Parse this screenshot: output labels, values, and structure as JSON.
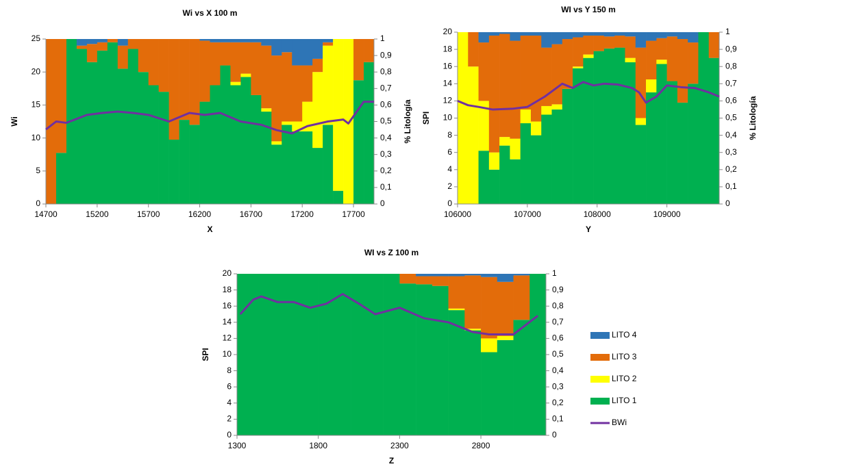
{
  "legend": [
    {
      "name": "LITO 4",
      "color": "#2e75b6"
    },
    {
      "name": "LITO 3",
      "color": "#e36c0a"
    },
    {
      "name": "LITO 2",
      "color": "#ffff00"
    },
    {
      "name": "LITO 1",
      "color": "#00b050"
    },
    {
      "name": "BWi",
      "color": "#7030a0"
    }
  ],
  "chart_data": [
    {
      "type": "stacked-histogram-line",
      "title": "Wi vs X 100 m",
      "x_label": "X",
      "y_label": "Wi",
      "y2_label": "% Litología",
      "bins": [
        14700,
        14800,
        14900,
        15000,
        15100,
        15200,
        15300,
        15400,
        15500,
        15600,
        15700,
        15800,
        15900,
        16000,
        16100,
        16200,
        16300,
        16400,
        16500,
        16600,
        16700,
        16800,
        16900,
        17000,
        17100,
        17200,
        17300,
        17400,
        17500,
        17600,
        17700,
        17800,
        17900
      ],
      "series": [
        {
          "values": [
            0,
            0,
            0,
            0.04,
            0.03,
            0.02,
            0,
            0.04,
            0,
            0,
            0,
            0,
            0,
            0,
            0,
            0.01,
            0.02,
            0.02,
            0.02,
            0.02,
            0.02,
            0.04,
            0.1,
            0.08,
            0.16,
            0.16,
            0.12,
            0.02,
            0,
            0,
            0,
            0
          ],
          "axis": "y2"
        },
        {
          "values": [
            1,
            0.69,
            0,
            0.02,
            0.11,
            0.05,
            0.02,
            0.14,
            0.06,
            0.2,
            0.28,
            0.32,
            0.61,
            0.49,
            0.52,
            0.37,
            0.26,
            0.14,
            0.24,
            0.19,
            0.32,
            0.38,
            0.52,
            0.42,
            0.34,
            0.22,
            0.08,
            0.02,
            0,
            0,
            0.25,
            0.14
          ],
          "axis": "y2"
        },
        {
          "values": [
            0,
            0,
            0,
            0,
            0,
            0,
            0,
            0,
            0,
            0,
            0,
            0,
            0,
            0,
            0,
            0,
            0,
            0,
            0.02,
            0.02,
            0,
            0.02,
            0.02,
            0.02,
            0.06,
            0.18,
            0.46,
            0.48,
            0.92,
            1,
            0,
            0
          ],
          "axis": "y2"
        },
        {
          "values": [
            0,
            0.31,
            1,
            0.94,
            0.86,
            0.93,
            0.98,
            0.82,
            0.94,
            0.8,
            0.72,
            0.68,
            0.39,
            0.51,
            0.48,
            0.62,
            0.72,
            0.84,
            0.72,
            0.77,
            0.66,
            0.56,
            0.36,
            0.48,
            0.44,
            0.44,
            0.34,
            0.48,
            0.08,
            0,
            0.75,
            0.86
          ],
          "axis": "y2"
        }
      ],
      "line": {
        "x": [
          14700,
          14800,
          14900,
          15100,
          15250,
          15400,
          15550,
          15700,
          15900,
          16100,
          16250,
          16400,
          16600,
          16800,
          16950,
          17100,
          17250,
          17450,
          17600,
          17650,
          17800,
          17900
        ],
        "values": [
          11.3,
          12.5,
          12.3,
          13.5,
          13.8,
          14,
          13.8,
          13.5,
          12.5,
          13.8,
          13.5,
          13.8,
          12.5,
          12,
          11.2,
          10.7,
          11.8,
          12.5,
          12.8,
          12.2,
          15.5,
          15.5
        ]
      },
      "xlim": [
        14700,
        17900
      ],
      "xticks": [
        14700,
        15200,
        15700,
        16200,
        16700,
        17200,
        17700
      ],
      "ylim": [
        0,
        25
      ],
      "yticks": [
        0,
        5,
        10,
        15,
        20,
        25
      ],
      "y2lim": [
        0,
        1
      ],
      "y2ticks": [
        0,
        {
          "value": 0.1,
          "label": "0,1"
        },
        {
          "value": 0.2,
          "label": "0,2"
        },
        {
          "value": 0.3,
          "label": "0,3"
        },
        {
          "value": 0.4,
          "label": "0,4"
        },
        {
          "value": 0.5,
          "label": "0,5"
        },
        {
          "value": 0.6,
          "label": "0,6"
        },
        {
          "value": 0.7,
          "label": "0,7"
        },
        {
          "value": 0.8,
          "label": "0,8"
        },
        {
          "value": 0.9,
          "label": "0,9"
        },
        1
      ]
    },
    {
      "type": "stacked-histogram-line",
      "title": "WI vs Y 150 m",
      "x_label": "Y",
      "y_label": "SPI",
      "y2_label": "% Litología",
      "bins": [
        106000,
        106150,
        106300,
        106450,
        106600,
        106750,
        106900,
        107050,
        107200,
        107350,
        107500,
        107650,
        107800,
        107950,
        108100,
        108250,
        108400,
        108550,
        108700,
        108850,
        109000,
        109150,
        109300,
        109450,
        109600,
        109750
      ],
      "series": [
        {
          "values": [
            0,
            0,
            0.06,
            0.02,
            0.01,
            0.05,
            0.02,
            0.02,
            0.09,
            0.07,
            0.04,
            0.03,
            0.02,
            0.02,
            0.025,
            0.02,
            0.025,
            0.09,
            0.05,
            0.035,
            0.025,
            0.04,
            0.06,
            0,
            0
          ],
          "axis": "y2"
        },
        {
          "values": [
            0,
            0.2,
            0.34,
            0.68,
            0.6,
            0.57,
            0.43,
            0.5,
            0.34,
            0.35,
            0.29,
            0.17,
            0.11,
            0.09,
            0.07,
            0.07,
            0.125,
            0.41,
            0.225,
            0.125,
            0.26,
            0.37,
            0.24,
            0,
            0.15
          ],
          "axis": "y2"
        },
        {
          "values": [
            1,
            0.8,
            0.29,
            0.1,
            0.05,
            0.12,
            0.08,
            0.08,
            0.05,
            0.03,
            0,
            0.01,
            0.02,
            0,
            0,
            0,
            0.025,
            0.04,
            0.075,
            0.025,
            0,
            0,
            0,
            0,
            0
          ],
          "axis": "y2"
        },
        {
          "values": [
            0,
            0,
            0.31,
            0.2,
            0.34,
            0.26,
            0.47,
            0.4,
            0.52,
            0.55,
            0.67,
            0.79,
            0.85,
            0.89,
            0.905,
            0.91,
            0.825,
            0.46,
            0.65,
            0.815,
            0.715,
            0.59,
            0.7,
            1,
            0.85
          ],
          "axis": "y2"
        }
      ],
      "line": {
        "x": [
          106000,
          106150,
          106300,
          106500,
          106800,
          107000,
          107250,
          107500,
          107650,
          107800,
          107950,
          108100,
          108300,
          108500,
          108600,
          108700,
          108850,
          109000,
          109200,
          109400,
          109600,
          109750
        ],
        "values": [
          12,
          11.5,
          11.3,
          11,
          11.1,
          11.3,
          12.5,
          14,
          13.5,
          14.2,
          13.8,
          14,
          13.9,
          13.5,
          13,
          11.8,
          12.5,
          13.8,
          13.6,
          13.5,
          13,
          12.5
        ]
      },
      "xlim": [
        106000,
        109750
      ],
      "xticks": [
        106000,
        107000,
        108000,
        109000
      ],
      "ylim": [
        0,
        20
      ],
      "yticks": [
        0,
        2,
        4,
        6,
        8,
        10,
        12,
        14,
        16,
        18,
        20
      ],
      "y2lim": [
        0,
        1
      ],
      "y2ticks": [
        0,
        {
          "value": 0.1,
          "label": "0,1"
        },
        {
          "value": 0.2,
          "label": "0,2"
        },
        {
          "value": 0.3,
          "label": "0,3"
        },
        {
          "value": 0.4,
          "label": "0,4"
        },
        {
          "value": 0.5,
          "label": "0,5"
        },
        {
          "value": 0.6,
          "label": "0,6"
        },
        {
          "value": 0.7,
          "label": "0,7"
        },
        {
          "value": 0.8,
          "label": "0,8"
        },
        {
          "value": 0.9,
          "label": "0,9"
        },
        1
      ]
    },
    {
      "type": "stacked-histogram-line",
      "title": "WI vs Z 100 m",
      "x_label": "Z",
      "y_label": "SPI",
      "bins": [
        1300,
        1400,
        1500,
        1600,
        1700,
        1800,
        1900,
        2000,
        2100,
        2200,
        2300,
        2400,
        2500,
        2600,
        2700,
        2800,
        2900,
        3000,
        3100,
        3200
      ],
      "series": [
        {
          "values": [
            0,
            0,
            0,
            0,
            0,
            0,
            0,
            0,
            0,
            0,
            0,
            0.015,
            0.015,
            0.015,
            0.01,
            0.02,
            0.05,
            0.01,
            0
          ],
          "axis": "y2"
        },
        {
          "values": [
            0,
            0,
            0,
            0,
            0,
            0,
            0,
            0,
            0,
            0,
            0.06,
            0.05,
            0.06,
            0.2,
            0.33,
            0.38,
            0.335,
            0.275,
            0
          ],
          "axis": "y2"
        },
        {
          "values": [
            0,
            0,
            0,
            0,
            0,
            0,
            0,
            0,
            0,
            0,
            0,
            0,
            0,
            0.01,
            0.01,
            0.085,
            0.025,
            0,
            0
          ],
          "axis": "y2"
        },
        {
          "values": [
            1,
            1,
            1,
            1,
            1,
            1,
            1,
            1,
            1,
            1,
            0.94,
            0.935,
            0.925,
            0.775,
            0.65,
            0.515,
            0.59,
            0.715,
            1
          ],
          "axis": "y2"
        }
      ],
      "line": {
        "x": [
          1320,
          1400,
          1450,
          1550,
          1650,
          1750,
          1850,
          1950,
          2050,
          2150,
          2300,
          2450,
          2600,
          2750,
          2850,
          3000,
          3150
        ],
        "values": [
          15,
          16.8,
          17.2,
          16.5,
          16.5,
          15.8,
          16.3,
          17.5,
          16.3,
          15,
          15.8,
          14.5,
          14,
          12.8,
          12.5,
          12.5,
          14.8
        ]
      },
      "xlim": [
        1300,
        3200
      ],
      "xticks": [
        1300,
        1800,
        2300,
        2800
      ],
      "ylim": [
        0,
        20
      ],
      "yticks": [
        0,
        2,
        4,
        6,
        8,
        10,
        12,
        14,
        16,
        18,
        20
      ],
      "y2lim": [
        0,
        1
      ],
      "y2ticks": [
        0,
        {
          "value": 0.1,
          "label": "0,1"
        },
        {
          "value": 0.2,
          "label": "0,2"
        },
        {
          "value": 0.3,
          "label": "0,3"
        },
        {
          "value": 0.4,
          "label": "0,4"
        },
        {
          "value": 0.5,
          "label": "0,5"
        },
        {
          "value": 0.6,
          "label": "0,6"
        },
        {
          "value": 0.7,
          "label": "0,7"
        },
        {
          "value": 0.8,
          "label": "0,8"
        },
        {
          "value": 0.9,
          "label": "0,9"
        },
        1
      ]
    }
  ]
}
